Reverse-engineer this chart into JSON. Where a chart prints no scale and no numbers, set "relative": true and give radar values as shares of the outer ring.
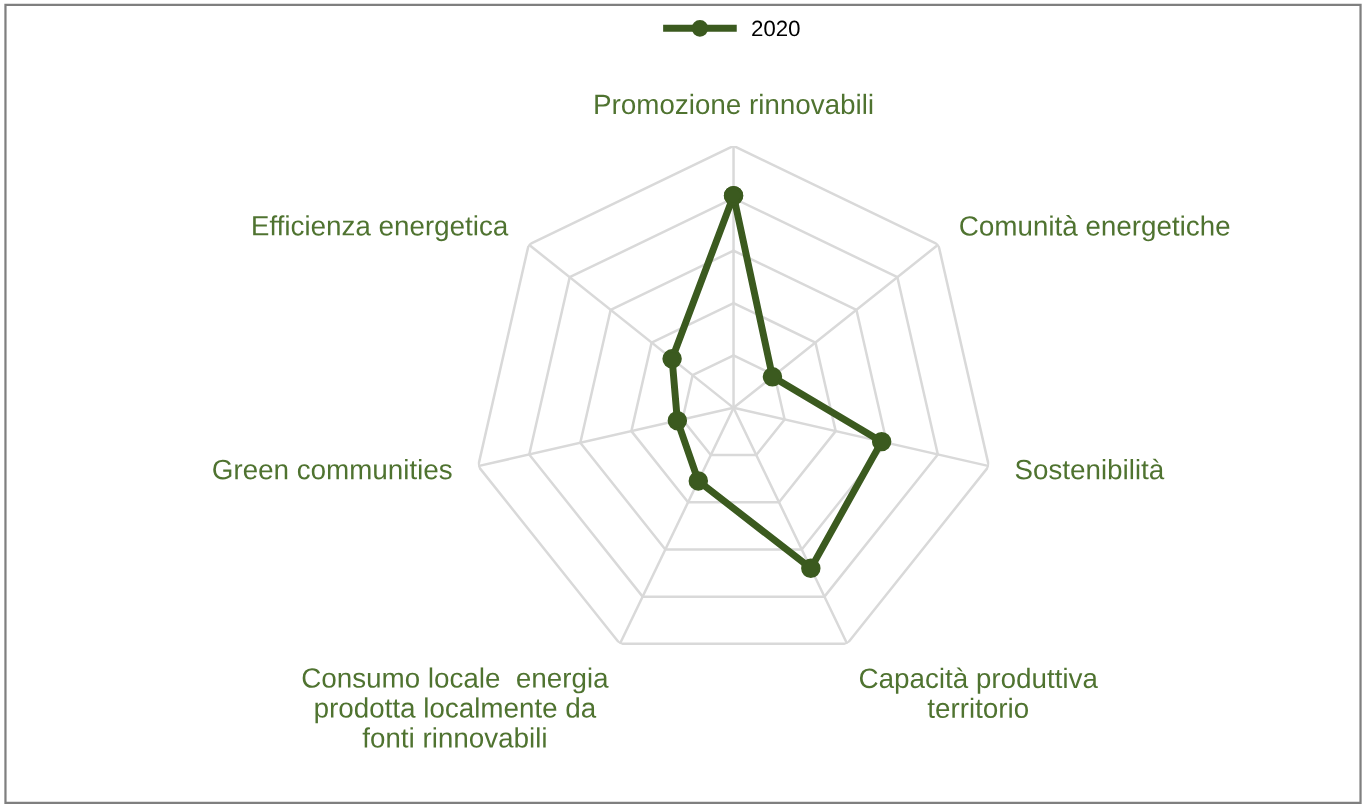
{
  "chart_data": {
    "type": "radar",
    "relative": true,
    "grid": true,
    "legend": "top",
    "marker": "circle",
    "line_style": "solid",
    "categories": [
      "Promozione rinnovabili",
      "Comunità energetiche",
      "Sostenibilità",
      "Capacità produttiva\nterritorio",
      "Consumo locale  energia\nprodotta localmente da\nfonti rinnovabili",
      "Green communities",
      "Efficienza energetica"
    ],
    "series": [
      {
        "name": "2020",
        "color": "#3b5a1f",
        "values": [
          0.81,
          0.19,
          0.58,
          0.68,
          0.31,
          0.22,
          0.3
        ]
      }
    ]
  }
}
